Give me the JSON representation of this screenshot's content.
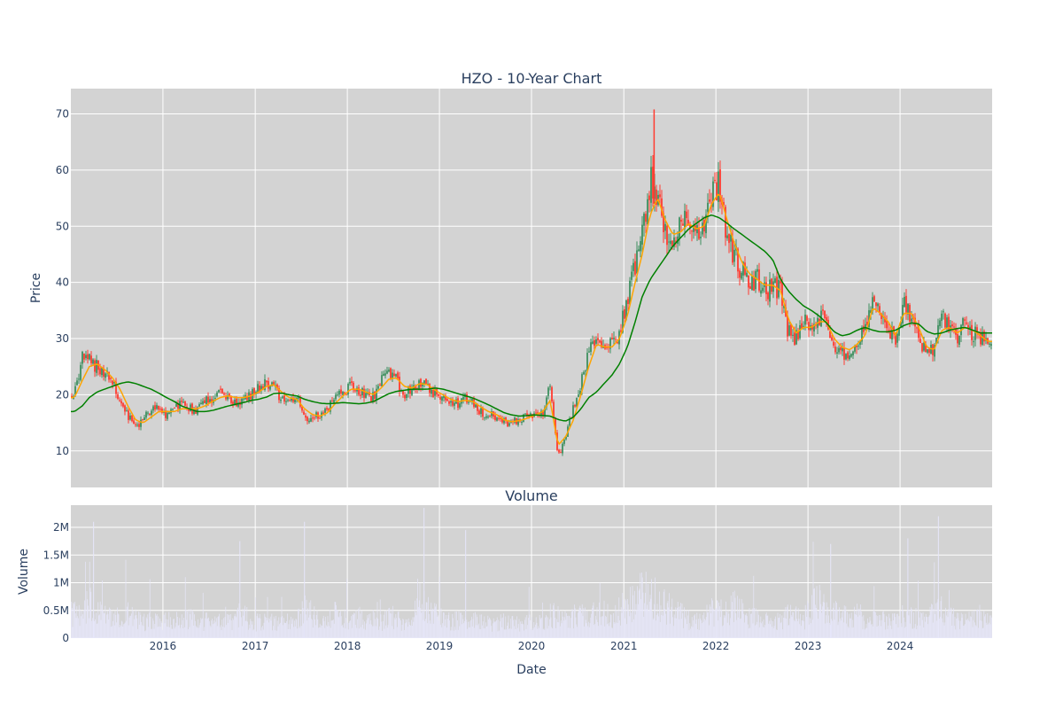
{
  "chart_data": [
    {
      "type": "candlestick",
      "title": "HZO - 10-Year Chart",
      "ylabel": "Price",
      "xlabel": "",
      "x_range": [
        "2015-01-01",
        "2024-12-31"
      ],
      "ylim": [
        3.5,
        74.5
      ],
      "y_ticks": [
        10,
        20,
        30,
        40,
        50,
        60,
        70
      ],
      "grid": true,
      "background": "#d3d3d3",
      "colors": {
        "increasing": "#3d8f5f",
        "decreasing": "#ff3b30",
        "ma_short": "#ffa500",
        "ma_long": "#008000"
      },
      "series": [
        {
          "name": "close",
          "kind": "candlestick",
          "x": [
            "2015-01",
            "2015-02",
            "2015-03",
            "2015-04",
            "2015-05",
            "2015-06",
            "2015-07",
            "2015-08",
            "2015-09",
            "2015-10",
            "2015-11",
            "2015-12",
            "2016-01",
            "2016-02",
            "2016-03",
            "2016-04",
            "2016-05",
            "2016-06",
            "2016-07",
            "2016-08",
            "2016-09",
            "2016-10",
            "2016-11",
            "2016-12",
            "2017-01",
            "2017-02",
            "2017-03",
            "2017-04",
            "2017-05",
            "2017-06",
            "2017-07",
            "2017-08",
            "2017-09",
            "2017-10",
            "2017-11",
            "2017-12",
            "2018-01",
            "2018-02",
            "2018-03",
            "2018-04",
            "2018-05",
            "2018-06",
            "2018-07",
            "2018-08",
            "2018-09",
            "2018-10",
            "2018-11",
            "2018-12",
            "2019-01",
            "2019-02",
            "2019-03",
            "2019-04",
            "2019-05",
            "2019-06",
            "2019-07",
            "2019-08",
            "2019-09",
            "2019-10",
            "2019-11",
            "2019-12",
            "2020-01",
            "2020-02",
            "2020-03",
            "2020-04",
            "2020-05",
            "2020-06",
            "2020-07",
            "2020-08",
            "2020-09",
            "2020-10",
            "2020-11",
            "2020-12",
            "2021-01",
            "2021-02",
            "2021-03",
            "2021-04",
            "2021-05",
            "2021-06",
            "2021-07",
            "2021-08",
            "2021-09",
            "2021-10",
            "2021-11",
            "2021-12",
            "2022-01",
            "2022-02",
            "2022-03",
            "2022-04",
            "2022-05",
            "2022-06",
            "2022-07",
            "2022-08",
            "2022-09",
            "2022-10",
            "2022-11",
            "2022-12",
            "2023-01",
            "2023-02",
            "2023-03",
            "2023-04",
            "2023-05",
            "2023-06",
            "2023-07",
            "2023-08",
            "2023-09",
            "2023-10",
            "2023-11",
            "2023-12",
            "2024-01",
            "2024-02",
            "2024-03",
            "2024-04",
            "2024-05",
            "2024-06",
            "2024-07",
            "2024-08",
            "2024-09",
            "2024-10",
            "2024-11",
            "2024-12"
          ],
          "values": [
            20,
            26.5,
            26,
            25,
            24,
            22,
            19,
            16,
            14.5,
            15.5,
            17.5,
            18,
            16,
            17.5,
            18.5,
            17.5,
            17,
            19,
            19.5,
            20.5,
            20,
            18,
            19.5,
            20,
            21.5,
            22,
            21.5,
            19,
            18.5,
            19.5,
            15.5,
            16,
            16.5,
            17,
            20,
            20.5,
            21.5,
            20.5,
            20,
            19.5,
            22.5,
            24,
            22.5,
            20,
            21.5,
            22.5,
            21.5,
            20,
            19.5,
            19,
            18.5,
            19.5,
            18.5,
            17,
            16.5,
            16,
            15,
            15,
            15.5,
            16,
            16.5,
            17,
            22,
            9,
            12,
            18,
            22,
            28,
            31,
            28,
            29,
            31,
            37,
            43,
            48,
            58,
            56,
            48,
            47,
            50,
            51,
            48,
            50,
            55,
            58,
            48,
            45,
            42,
            40,
            41,
            38,
            40,
            38,
            31,
            30,
            33,
            32,
            34,
            33,
            28,
            27,
            28,
            30,
            31,
            38,
            33,
            32,
            29,
            37,
            34,
            30,
            27,
            28,
            34,
            32,
            30,
            33,
            31,
            30,
            29
          ],
          "ma_short": [
            19.5,
            22.5,
            25,
            25.5,
            24.5,
            23,
            21,
            18,
            15.5,
            15,
            16,
            17,
            17,
            17,
            17.5,
            17.5,
            17.5,
            18,
            18.8,
            19.5,
            19.8,
            19.5,
            19.5,
            19.8,
            20.5,
            21.5,
            21.8,
            20.5,
            19.5,
            19.2,
            17.5,
            16.5,
            16.2,
            16.8,
            18.5,
            19.8,
            21,
            21,
            20.5,
            20,
            21.2,
            22.8,
            23,
            21.5,
            21.2,
            22,
            21.8,
            20.8,
            20,
            19.2,
            18.8,
            19,
            18.8,
            17.8,
            17,
            16.5,
            15.5,
            15.2,
            15.4,
            15.8,
            16.4,
            17,
            19,
            11,
            12.5,
            15.5,
            20,
            25,
            29,
            28.5,
            28.5,
            30,
            34,
            40,
            45,
            52,
            55,
            51,
            48.5,
            49,
            50.5,
            49.5,
            50,
            54,
            56,
            51,
            47,
            43.5,
            41.5,
            40.5,
            39.5,
            39.5,
            38.5,
            33.5,
            31,
            32,
            32,
            33,
            33,
            30,
            28.5,
            28,
            29,
            30.5,
            35.5,
            34.5,
            33,
            30.5,
            34.5,
            34.5,
            32,
            28.5,
            28,
            31.5,
            32,
            31,
            32,
            31.5,
            30.5,
            29.5
          ],
          "ma_long": [
            17,
            18,
            19.5,
            20.5,
            21,
            21.5,
            22,
            22.3,
            22,
            21.5,
            21,
            20.3,
            19.5,
            18.8,
            18,
            17.5,
            17,
            17,
            17.2,
            17.6,
            18,
            18.3,
            18.6,
            19,
            19.2,
            19.6,
            20.2,
            20.3,
            20,
            19.8,
            19.2,
            18.8,
            18.5,
            18.4,
            18.5,
            18.6,
            18.5,
            18.4,
            18.5,
            18.8,
            19.5,
            20.2,
            20.6,
            20.8,
            21,
            21,
            21,
            21.2,
            21,
            20.6,
            20.2,
            19.8,
            19.4,
            18.8,
            18.2,
            17.5,
            16.8,
            16.4,
            16.2,
            16.3,
            16.4,
            16.3,
            16.2,
            15.6,
            15.3,
            16,
            17.5,
            19.5,
            20.5,
            22,
            23.5,
            25.5,
            28.5,
            33,
            37.5,
            40.5,
            42.5,
            44.5,
            46.5,
            48,
            49.5,
            50.5,
            51.5,
            52,
            51.5,
            50.5,
            49.5,
            48.5,
            47.5,
            46.5,
            45.5,
            44,
            40.5,
            38.5,
            37,
            35.8,
            35,
            34,
            32.8,
            31.2,
            30.5,
            30.8,
            31.5,
            32,
            31.5,
            31.2,
            31.2,
            31.5,
            32.3,
            32.8,
            32.6,
            31.3,
            30.8,
            31,
            31.5,
            31.8,
            32,
            31.5,
            31,
            31
          ]
        }
      ]
    },
    {
      "type": "bar",
      "title": "Volume",
      "ylabel": "Volume",
      "xlabel": "Date",
      "ylim": [
        0,
        2.4
      ],
      "y_ticks": [
        0,
        0.5,
        1,
        1.5,
        2
      ],
      "y_tick_labels": [
        "0",
        "0.5M",
        "1M",
        "1.5M",
        "2M"
      ],
      "x_ticks": [
        "2016-01-01",
        "2017-01-01",
        "2018-01-01",
        "2019-01-01",
        "2020-01-01",
        "2021-01-01",
        "2022-01-01",
        "2023-01-01",
        "2024-01-01"
      ],
      "x_tick_labels": [
        "2016",
        "2017",
        "2018",
        "2019",
        "2020",
        "2021",
        "2022",
        "2023",
        "2024"
      ],
      "unit": "M",
      "bar_color": "#e6e6fa",
      "series": [
        {
          "name": "volume",
          "x_start": "2015-01",
          "values_monthly_avg": [
            0.45,
            0.42,
            0.8,
            0.5,
            0.4,
            0.35,
            0.38,
            0.45,
            0.4,
            0.3,
            0.35,
            0.32,
            0.4,
            0.35,
            0.3,
            0.38,
            0.32,
            0.3,
            0.42,
            0.28,
            0.3,
            0.38,
            0.5,
            0.3,
            0.3,
            0.35,
            0.32,
            0.3,
            0.3,
            0.35,
            0.55,
            0.45,
            0.35,
            0.3,
            0.45,
            0.35,
            0.35,
            0.4,
            0.3,
            0.35,
            0.3,
            0.4,
            0.35,
            0.3,
            0.35,
            0.7,
            0.55,
            0.45,
            0.35,
            0.3,
            0.35,
            0.3,
            0.3,
            0.35,
            0.28,
            0.3,
            0.3,
            0.3,
            0.25,
            0.3,
            0.25,
            0.3,
            0.45,
            0.4,
            0.35,
            0.4,
            0.45,
            0.35,
            0.5,
            0.45,
            0.4,
            0.55,
            0.6,
            0.75,
            0.8,
            0.85,
            0.75,
            0.6,
            0.5,
            0.45,
            0.35,
            0.3,
            0.35,
            0.5,
            0.55,
            0.45,
            0.6,
            0.5,
            0.4,
            0.35,
            0.3,
            0.35,
            0.3,
            0.45,
            0.4,
            0.35,
            0.6,
            0.7,
            0.55,
            0.5,
            0.45,
            0.35,
            0.45,
            0.35,
            0.4,
            0.35,
            0.3,
            0.3,
            0.45,
            0.4,
            0.35,
            0.35,
            0.5,
            0.55,
            0.4,
            0.35,
            0.3,
            0.35,
            0.35,
            0.3
          ],
          "spikes": [
            [
              "2015-04-01",
              2.1
            ],
            [
              "2017-07-15",
              2.1
            ],
            [
              "2018-11-01",
              2.35
            ],
            [
              "2019-04-15",
              1.95
            ],
            [
              "2024-06-01",
              2.2
            ],
            [
              "2016-11-01",
              1.75
            ],
            [
              "2024-02-01",
              1.8
            ],
            [
              "2023-04-01",
              1.7
            ]
          ]
        }
      ]
    }
  ]
}
